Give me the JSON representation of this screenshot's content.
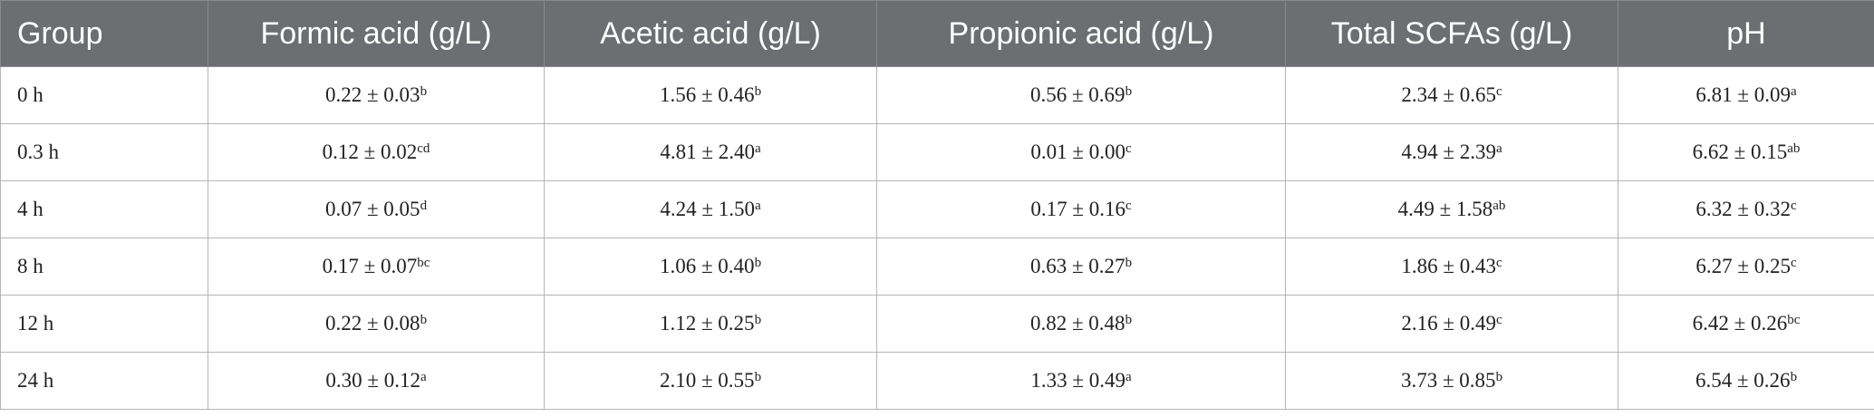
{
  "table": {
    "header": [
      "Group",
      "Formic acid (g/L)",
      "Acetic acid (g/L)",
      "Propionic acid (g/L)",
      "Total SCFAs (g/L)",
      "pH"
    ],
    "rows": [
      [
        "0 h",
        {
          "text": "0.22 ± 0.03",
          "sup": "b"
        },
        {
          "text": "1.56 ± 0.46",
          "sup": "b"
        },
        {
          "text": "0.56 ± 0.69",
          "sup": "b"
        },
        {
          "text": "2.34 ± 0.65",
          "sup": "c"
        },
        {
          "text": "6.81 ± 0.09",
          "sup": "a"
        }
      ],
      [
        "0.3 h",
        {
          "text": "0.12 ± 0.02",
          "sup": "cd"
        },
        {
          "text": "4.81 ± 2.40",
          "sup": "a"
        },
        {
          "text": "0.01 ± 0.00",
          "sup": "c"
        },
        {
          "text": "4.94 ± 2.39",
          "sup": "a"
        },
        {
          "text": "6.62 ± 0.15",
          "sup": "ab"
        }
      ],
      [
        "4 h",
        {
          "text": "0.07 ± 0.05",
          "sup": "d"
        },
        {
          "text": "4.24 ± 1.50",
          "sup": "a"
        },
        {
          "text": "0.17 ± 0.16",
          "sup": "c"
        },
        {
          "text": "4.49 ± 1.58",
          "sup": "ab"
        },
        {
          "text": "6.32 ± 0.32",
          "sup": "c"
        }
      ],
      [
        "8 h",
        {
          "text": "0.17 ± 0.07",
          "sup": "bc"
        },
        {
          "text": "1.06 ± 0.40",
          "sup": "b"
        },
        {
          "text": "0.63 ± 0.27",
          "sup": "b"
        },
        {
          "text": "1.86 ± 0.43",
          "sup": "c"
        },
        {
          "text": "6.27 ± 0.25",
          "sup": "c"
        }
      ],
      [
        "12 h",
        {
          "text": "0.22 ± 0.08",
          "sup": "b"
        },
        {
          "text": "1.12 ± 0.25",
          "sup": "b"
        },
        {
          "text": "0.82 ± 0.48",
          "sup": "b"
        },
        {
          "text": "2.16 ± 0.49",
          "sup": "c"
        },
        {
          "text": "6.42 ± 0.26",
          "sup": "bc"
        }
      ],
      [
        "24 h",
        {
          "text": "0.30 ± 0.12",
          "sup": "a"
        },
        {
          "text": "2.10 ± 0.55",
          "sup": "b"
        },
        {
          "text": "1.33 ± 0.49",
          "sup": "a"
        },
        {
          "text": "3.73 ± 0.85",
          "sup": "b"
        },
        {
          "text": "6.54 ± 0.26",
          "sup": "b"
        }
      ]
    ]
  }
}
